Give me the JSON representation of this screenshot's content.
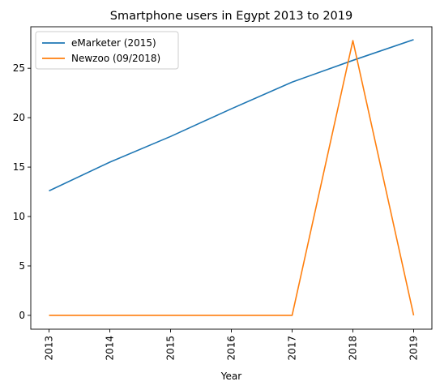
{
  "chart_data": {
    "type": "line",
    "title": "Smartphone users in Egypt 2013 to 2019",
    "xlabel": "Year",
    "ylabel": "",
    "x": [
      "2013",
      "2014",
      "2015",
      "2016",
      "2017",
      "2018",
      "2019"
    ],
    "ylim": [
      -1.4,
      29.2
    ],
    "yticks": [
      0,
      5,
      10,
      15,
      20,
      25
    ],
    "grid": false,
    "legend": "top-left",
    "series": [
      {
        "name": "eMarketer (2015)",
        "color": "#1f77b4",
        "values": [
          12.6,
          15.5,
          18.1,
          20.9,
          23.6,
          25.8,
          27.9
        ]
      },
      {
        "name": "Newzoo (09/2018)",
        "color": "#ff7f0e",
        "values": [
          0,
          0,
          0,
          0,
          0,
          27.8,
          0
        ]
      }
    ]
  }
}
